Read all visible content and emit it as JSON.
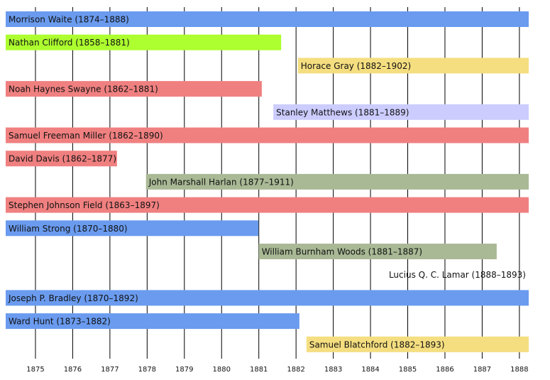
{
  "chart_data": {
    "type": "timeline",
    "rows": [
      {
        "label": "Morrison Waite (1874–1888)",
        "start": 1874.2,
        "end": 1888.25,
        "color": "#6a9bef"
      },
      {
        "label": "Nathan Clifford (1858–1881)",
        "start": 1874.2,
        "end": 1881.6,
        "color": "#adff2f"
      },
      {
        "label": "Horace Gray (1882–1902)",
        "start": 1882.05,
        "end": 1888.25,
        "color": "#f5de80"
      },
      {
        "label": "Noah Haynes Swayne (1862–1881)",
        "start": 1874.2,
        "end": 1881.08,
        "color": "#f08080"
      },
      {
        "label": "Stanley Matthews (1881–1889)",
        "start": 1881.39,
        "end": 1888.25,
        "color": "#ccccff"
      },
      {
        "label": "Samuel Freeman Miller (1862–1890)",
        "start": 1874.2,
        "end": 1888.25,
        "color": "#f08080"
      },
      {
        "label": "David Davis (1862–1877)",
        "start": 1874.2,
        "end": 1877.19,
        "color": "#f08080"
      },
      {
        "label": "John Marshall Harlan (1877–1911)",
        "start": 1877.97,
        "end": 1888.25,
        "color": "#a9b995"
      },
      {
        "label": "Stephen Johnson Field (1863–1897)",
        "start": 1874.2,
        "end": 1888.25,
        "color": "#f08080"
      },
      {
        "label": "William Strong (1870–1880)",
        "start": 1874.2,
        "end": 1880.99,
        "color": "#6a9bef"
      },
      {
        "label": "William Burnham Woods (1881–1887)",
        "start": 1881.0,
        "end": 1887.39,
        "color": "#a9b995"
      },
      {
        "label": "Lucius Q. C. Lamar (1888–1893)",
        "start": 1888.04,
        "end": 1888.25,
        "color": "#ffffff"
      },
      {
        "label": "Joseph P. Bradley (1870–1892)",
        "start": 1874.2,
        "end": 1888.25,
        "color": "#6a9bef"
      },
      {
        "label": "Ward Hunt (1873–1882)",
        "start": 1874.2,
        "end": 1882.09,
        "color": "#6a9bef"
      },
      {
        "label": "Samuel Blatchford (1882–1893)",
        "start": 1882.28,
        "end": 1888.25,
        "color": "#f5de80"
      }
    ],
    "xlim": [
      1874.2,
      1888.25
    ],
    "xticks": [
      1875,
      1876,
      1877,
      1878,
      1879,
      1880,
      1881,
      1882,
      1883,
      1884,
      1885,
      1886,
      1887,
      1888
    ],
    "grid": true
  }
}
